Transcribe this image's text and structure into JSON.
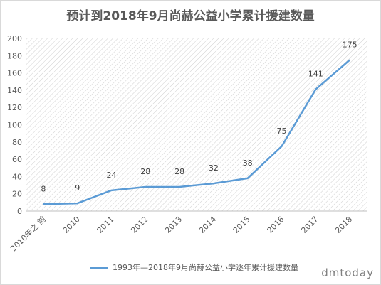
{
  "chart_data": {
    "type": "line",
    "title": "预计到2018年9月尚赫公益小学累计援建数量",
    "categories": [
      "2010年之 前",
      "2010",
      "2011",
      "2012",
      "2013",
      "2014",
      "2015",
      "2016",
      "2017",
      "2018"
    ],
    "series": [
      {
        "name": "1993年—2018年9月尚赫公益小学逐年累计援建数量",
        "values": [
          8,
          9,
          24,
          28,
          28,
          32,
          38,
          75,
          141,
          175
        ]
      }
    ],
    "ylim": [
      0,
      200
    ],
    "yticks": [
      0,
      20,
      40,
      60,
      80,
      100,
      120,
      140,
      160,
      180,
      200
    ],
    "grid": "hatched plot area",
    "legend_position": "bottom",
    "line_color": "#5b9bd5"
  },
  "watermark": "dmtoday"
}
